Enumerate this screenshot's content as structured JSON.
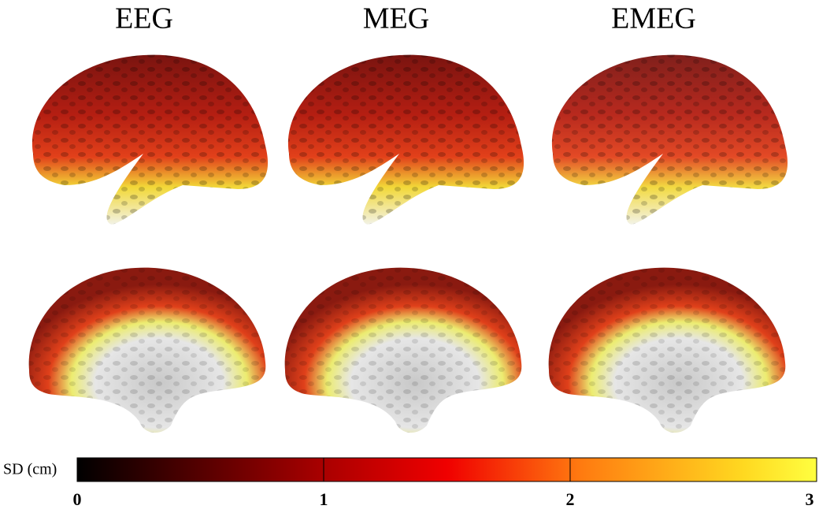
{
  "titles": [
    "EEG",
    "MEG",
    "EMEG"
  ],
  "colorbar": {
    "label": "SD (cm)",
    "lim": [
      0,
      3
    ],
    "ticks": [
      0,
      1,
      2,
      3
    ]
  }
}
